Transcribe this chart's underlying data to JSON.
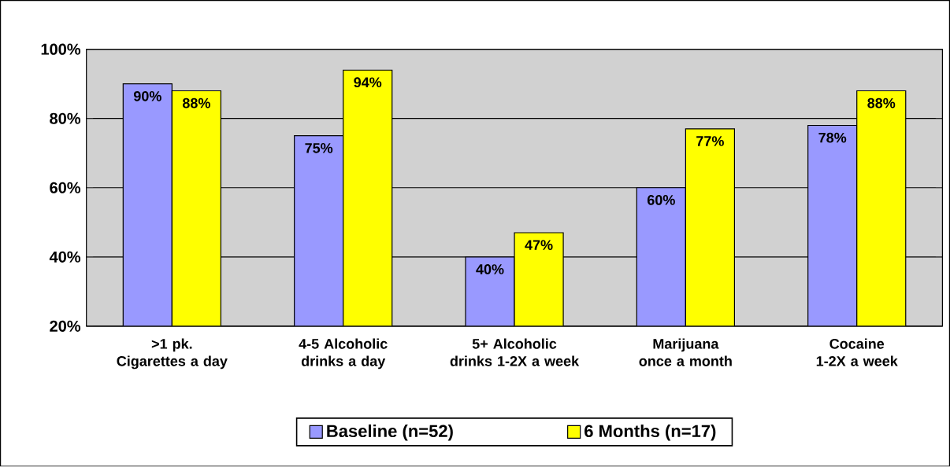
{
  "chart_data": {
    "type": "bar",
    "categories": [
      ">1 pk. Cigarettes a day",
      "4-5 Alcoholic drinks a day",
      "5+ Alcoholic drinks 1-2X a week",
      "Marijuana once a month",
      "Cocaine\n1-2X a week"
    ],
    "series": [
      {
        "name": "Baseline (n=52)",
        "color": "#9999ff",
        "values": [
          90,
          75,
          40,
          60,
          78
        ],
        "value_labels": [
          "90%",
          "75%",
          "40%",
          "60%",
          "78%"
        ]
      },
      {
        "name": "6 Months (n=17)",
        "color": "#ffff00",
        "values": [
          88,
          94,
          47,
          77,
          88
        ],
        "value_labels": [
          "88%",
          "94%",
          "47%",
          "77%",
          "88%"
        ]
      }
    ],
    "ylim": [
      20,
      100
    ],
    "yticks": [
      {
        "value": 20,
        "label": "20%"
      },
      {
        "value": 40,
        "label": "40%"
      },
      {
        "value": 60,
        "label": "60%"
      },
      {
        "value": 80,
        "label": "80%"
      },
      {
        "value": 100,
        "label": "100%"
      }
    ],
    "grid": "y",
    "legend": "bottom"
  }
}
